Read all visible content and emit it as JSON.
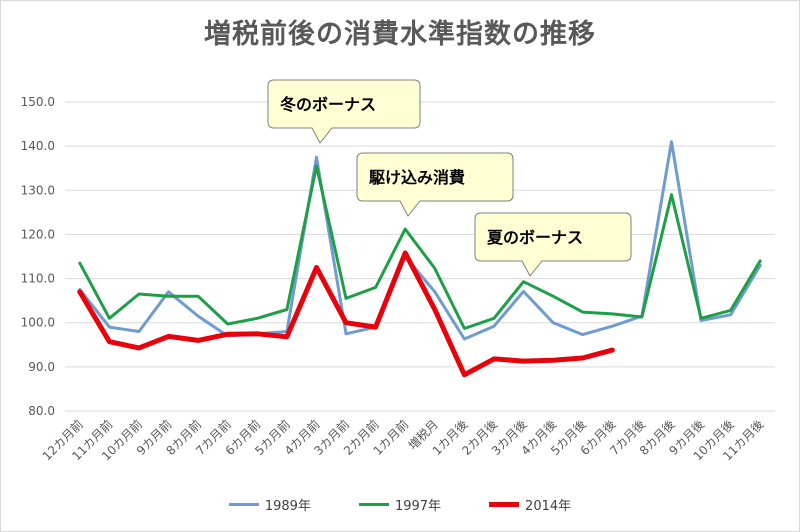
{
  "chart_data": {
    "type": "line",
    "title": "増税前後の消費水準指数の推移",
    "ylim": [
      80,
      150
    ],
    "yticks": [
      "80.0",
      "90.0",
      "100.0",
      "110.0",
      "120.0",
      "130.0",
      "140.0",
      "150.0"
    ],
    "grid": true,
    "legend_position": "bottom",
    "categories": [
      "12カ月前",
      "11カ月前",
      "10カ月前",
      "9カ月前",
      "8カ月前",
      "7カ月前",
      "6カ月前",
      "5カ月前",
      "4カ月前",
      "3カ月前",
      "2カ月前",
      "1カ月前",
      "増税月",
      "1カ月後",
      "2カ月後",
      "3カ月後",
      "4カ月後",
      "5カ月後",
      "6カ月後",
      "7カ月後",
      "8カ月後",
      "9カ月後",
      "10カ月後",
      "11カ月後"
    ],
    "series": [
      {
        "name": "1989年",
        "color": "#6f9bcf",
        "width": 3,
        "values": [
          107.5,
          99.0,
          98.0,
          107.0,
          101.5,
          97.0,
          97.5,
          98.0,
          137.5,
          97.5,
          99.0,
          115.0,
          107.0,
          96.3,
          99.2,
          107.1,
          100.0,
          97.3,
          99.2,
          101.5,
          141.0,
          100.5,
          101.8,
          113.0
        ]
      },
      {
        "name": "1997年",
        "color": "#1f9e48",
        "width": 3,
        "values": [
          113.5,
          101.0,
          106.5,
          106.0,
          106.0,
          99.7,
          101.0,
          103.0,
          135.5,
          105.5,
          108.0,
          121.2,
          112.3,
          98.7,
          101.0,
          109.3,
          106.0,
          102.4,
          102.0,
          101.3,
          129.0,
          101.0,
          102.8,
          114.0
        ]
      },
      {
        "name": "2014年",
        "color": "#e8000b",
        "width": 5,
        "values": [
          107.0,
          95.7,
          94.3,
          96.9,
          96.0,
          97.4,
          97.5,
          96.8,
          112.5,
          100.0,
          99.0,
          115.8,
          103.0,
          88.2,
          91.8,
          91.3,
          91.5,
          92.0,
          93.8,
          null,
          null,
          null,
          null,
          null
        ]
      }
    ],
    "annotations": [
      {
        "text": "冬のボーナス",
        "target_index": 8
      },
      {
        "text": "駆け込み消費",
        "target_index": 11
      },
      {
        "text": "夏のボーナス",
        "target_index": 15
      }
    ]
  }
}
